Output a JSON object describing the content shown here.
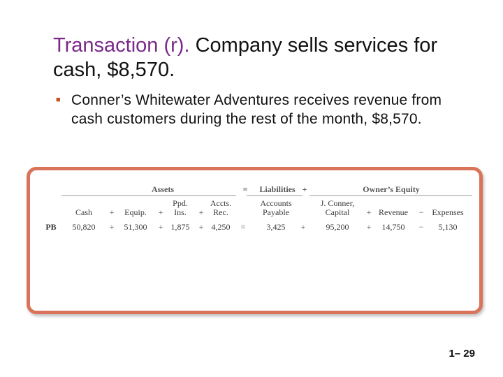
{
  "slide": {
    "title_prefix": "Transaction (r).",
    "title_rest": " Company sells services for cash, $8,570.",
    "bullet": "Conner’s Whitewater Adventures receives revenue from cash customers during the rest of the month, $8,570.",
    "slide_number": "1– 29",
    "accent_color": "#7a2a8a",
    "panel_border_color": "#d9735a",
    "bullet_icon": "square-bullet-icon"
  },
  "equation": {
    "groups": {
      "assets": "Assets",
      "eq": "=",
      "liabilities": "Liabilities",
      "plus": "+",
      "equity": "Owner’s Equity"
    },
    "headers": {
      "cash": "Cash",
      "equip": "Equip.",
      "ppd_ins_1": "Ppd.",
      "ppd_ins_2": "Ins.",
      "accts_rec_1": "Accts.",
      "accts_rec_2": "Rec.",
      "ap_1": "Accounts",
      "ap_2": "Payable",
      "capital_1": "J. Conner,",
      "capital_2": "Capital",
      "revenue": "Revenue",
      "expenses": "Expenses"
    },
    "operators": {
      "plus": "+",
      "equals": "=",
      "minus": "−"
    },
    "row": {
      "label": "PB",
      "cash": "50,820",
      "equip": "51,300",
      "ppd_ins": "1,875",
      "accts_rec": "4,250",
      "ap": "3,425",
      "capital": "95,200",
      "revenue": "14,750",
      "expenses": "5,130"
    }
  }
}
